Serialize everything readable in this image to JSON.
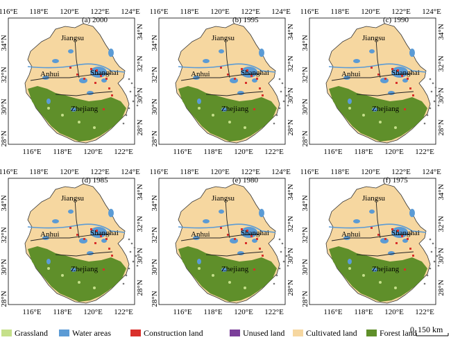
{
  "panels": [
    {
      "id": "a",
      "label": "(a) 2000"
    },
    {
      "id": "b",
      "label": "(b) 1995"
    },
    {
      "id": "c",
      "label": "(c) 1990"
    },
    {
      "id": "d",
      "label": "(d) 1985"
    },
    {
      "id": "e",
      "label": "(e) 1980"
    },
    {
      "id": "f",
      "label": "(f) 1975"
    }
  ],
  "provinces": {
    "jiangsu": "Jiangsu",
    "anhui": "Anhui",
    "shanghai": "Shanghai",
    "zhejiang": "Zhejiang"
  },
  "axes": {
    "lon_ticks": [
      "116°E",
      "118°E",
      "120°E",
      "122°E",
      "124°E"
    ],
    "lon_ticks_bottom": [
      "116°E",
      "118°E",
      "120°E",
      "122°E"
    ],
    "lat_ticks_left": [
      "34°N",
      "32°N",
      "30°N",
      "28°N"
    ],
    "lat_ticks_right": [
      "34°N",
      "32°N",
      "30°N",
      "28°N"
    ]
  },
  "legend": [
    {
      "name": "Grassland",
      "color": "#c5e08a"
    },
    {
      "name": "Water areas",
      "color": "#5b9bd5"
    },
    {
      "name": "Construction land",
      "color": "#d9302b"
    },
    {
      "name": "Unused land",
      "color": "#7b3f9a"
    },
    {
      "name": "Cultivated land",
      "color": "#f6d7a0"
    },
    {
      "name": "Forest land",
      "color": "#5f8f2a"
    }
  ],
  "scale_bar": {
    "start": "0",
    "end": "150 km"
  }
}
